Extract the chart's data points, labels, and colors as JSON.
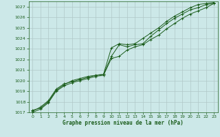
{
  "title": "Graphe pression niveau de la mer (hPa)",
  "bg_color": "#cce8e8",
  "grid_color": "#b0c8c8",
  "line_color": "#1a5c1a",
  "marker_color": "#1a5c1a",
  "ylim": [
    1017,
    1027.5
  ],
  "xlim": [
    -0.5,
    23.5
  ],
  "yticks": [
    1017,
    1018,
    1019,
    1020,
    1021,
    1022,
    1023,
    1024,
    1025,
    1026,
    1027
  ],
  "xticks": [
    0,
    1,
    2,
    3,
    4,
    5,
    6,
    7,
    8,
    9,
    10,
    11,
    12,
    13,
    14,
    15,
    16,
    17,
    18,
    19,
    20,
    21,
    22,
    23
  ],
  "series1_x": [
    0,
    1,
    2,
    3,
    4,
    5,
    6,
    7,
    8,
    9,
    10,
    11,
    12,
    13,
    14,
    15,
    16,
    17,
    18,
    19,
    20,
    21,
    22,
    23
  ],
  "series1_y": [
    1017.1,
    1017.5,
    1018.1,
    1019.2,
    1019.7,
    1019.9,
    1020.1,
    1020.3,
    1020.5,
    1020.6,
    1022.3,
    1023.4,
    1023.2,
    1023.4,
    1023.5,
    1024.2,
    1024.8,
    1025.4,
    1025.9,
    1026.3,
    1026.7,
    1026.9,
    1027.2,
    1027.3
  ],
  "series2_x": [
    0,
    1,
    2,
    3,
    4,
    5,
    6,
    7,
    8,
    9,
    10,
    11,
    12,
    13,
    14,
    15,
    16,
    17,
    18,
    19,
    20,
    21,
    22,
    23
  ],
  "series2_y": [
    1017.0,
    1017.3,
    1017.9,
    1019.0,
    1019.5,
    1019.8,
    1020.0,
    1020.2,
    1020.4,
    1020.5,
    1022.1,
    1022.3,
    1022.9,
    1023.2,
    1023.4,
    1023.9,
    1024.3,
    1024.9,
    1025.4,
    1025.9,
    1026.3,
    1026.6,
    1026.9,
    1027.3
  ],
  "series3_x": [
    0,
    1,
    2,
    3,
    4,
    5,
    6,
    7,
    8,
    9,
    10,
    11,
    12,
    13,
    14,
    15,
    16,
    17,
    18,
    19,
    20,
    21,
    22,
    23
  ],
  "series3_y": [
    1017.2,
    1017.4,
    1018.0,
    1019.1,
    1019.6,
    1020.0,
    1020.2,
    1020.4,
    1020.5,
    1020.6,
    1023.1,
    1023.5,
    1023.4,
    1023.5,
    1024.0,
    1024.5,
    1025.0,
    1025.6,
    1026.1,
    1026.5,
    1026.9,
    1027.2,
    1027.3,
    1027.4
  ]
}
